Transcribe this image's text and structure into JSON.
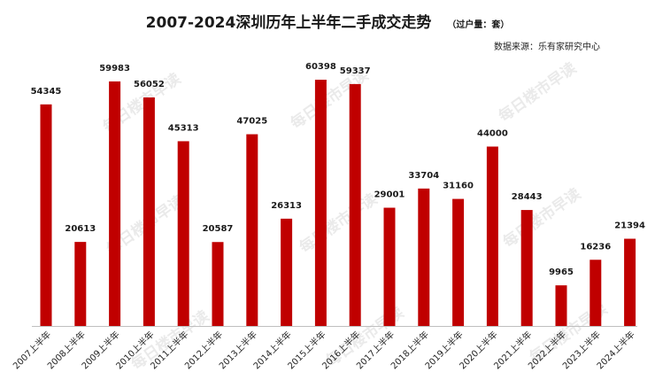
{
  "title": "2007-2024深圳历年上半年二手成交走势",
  "unit": "（过户量：套）",
  "source": "数据来源：乐有家研究中心",
  "watermark": "每日楼市早读",
  "colors": {
    "bar": "#c00000",
    "axis": "#bfbfbf",
    "label": "#1a1a1a"
  },
  "chart_data": {
    "type": "bar",
    "title": "2007-2024深圳历年上半年二手成交走势",
    "categories": [
      "2007上半年",
      "2008上半年",
      "2009上半年",
      "2010上半年",
      "2011上半年",
      "2012上半年",
      "2013上半年",
      "2014上半年",
      "2015上半年",
      "2016上半年",
      "2017上半年",
      "2018上半年",
      "2019上半年",
      "2020上半年",
      "2021上半年",
      "2022上半年",
      "2023上半年",
      "2024上半年"
    ],
    "values": [
      54345,
      20613,
      59983,
      56052,
      45313,
      20587,
      47025,
      26313,
      60398,
      59337,
      29001,
      33704,
      31160,
      44000,
      28443,
      9965,
      16236,
      21394
    ],
    "ylim": [
      0,
      65000
    ],
    "grid": false,
    "legend": "none"
  }
}
